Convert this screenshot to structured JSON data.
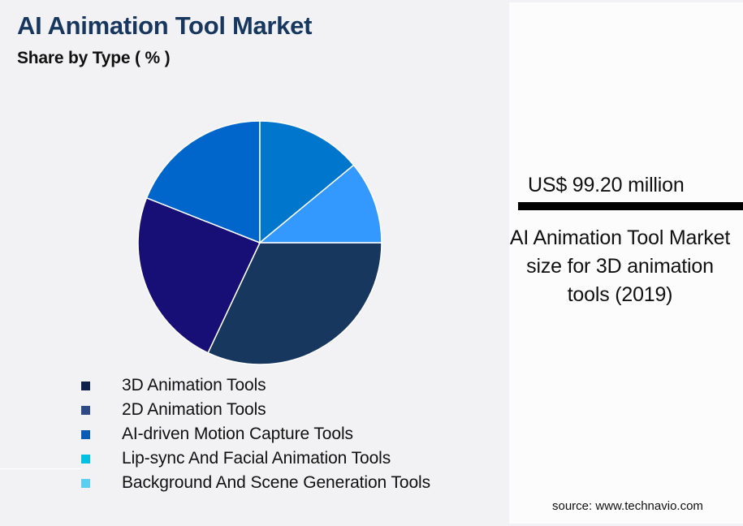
{
  "header": {
    "title": "AI Animation Tool Market",
    "subtitle": "Share by Type ( % )"
  },
  "kpi": {
    "value": "US$ 99.20 million",
    "description": "AI Animation Tool Market size for 3D animation tools (2019)"
  },
  "source": "source: www.technavio.com",
  "colors": {
    "title": "#17375E",
    "background": "#F2F2F4",
    "panel": "#FCFCFC"
  },
  "legend": [
    {
      "label": "3D Animation Tools",
      "color": "#0E1F4A"
    },
    {
      "label": "2D Animation Tools",
      "color": "#2D4A86"
    },
    {
      "label": "AI-driven Motion Capture Tools",
      "color": "#0A5BB5"
    },
    {
      "label": "Lip-sync And Facial Animation Tools",
      "color": "#00C0E4"
    },
    {
      "label": "Background And Scene Generation Tools",
      "color": "#5BCFF0"
    }
  ],
  "chart_data": {
    "type": "pie",
    "title": "AI Animation Tool Market",
    "subtitle": "Share by Type ( % )",
    "categories": [
      "3D Animation Tools",
      "2D Animation Tools",
      "AI-driven Motion Capture Tools",
      "Lip-sync And Facial Animation Tools",
      "Background And Scene Generation Tools"
    ],
    "values": [
      32,
      24,
      19,
      14,
      11
    ],
    "slice_colors": [
      "#17375E",
      "#170F75",
      "#0066CC",
      "#0077CC",
      "#3399FF"
    ],
    "start_angle_deg": 0,
    "direction": "clockwise-from-3-oclock",
    "legend_position": "bottom",
    "data_labels": false
  }
}
